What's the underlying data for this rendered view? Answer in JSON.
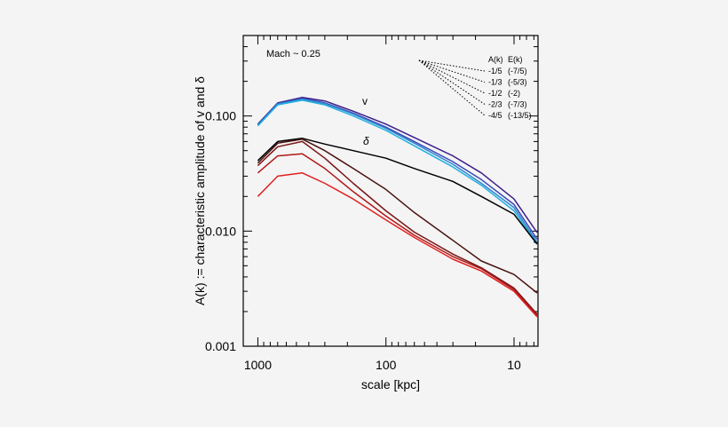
{
  "chart_data": {
    "type": "line",
    "title": "",
    "xlabel": "scale [kpc]",
    "ylabel": "A(k) := characteristic amplitude of v and δ",
    "xscale": "log",
    "yscale": "log",
    "x_reversed": true,
    "xlim": [
      1300,
      6.5
    ],
    "ylim": [
      0.001,
      0.5
    ],
    "xticks": [
      1000,
      100,
      10
    ],
    "xtick_labels": [
      "1000",
      "100",
      "10"
    ],
    "yticks": [
      0.001,
      0.01,
      0.1
    ],
    "ytick_labels": [
      "0.001",
      "0.010",
      "0.100"
    ],
    "annotations": {
      "mach": "Mach ~ 0.25",
      "v_label": "v",
      "delta_label": "δ"
    },
    "legend": {
      "placement": "top-right",
      "header_a": "A(k)",
      "header_e": "E(k)",
      "rows": [
        {
          "a": "-1/5",
          "e": "(-7/5)"
        },
        {
          "a": "-1/3",
          "e": "(-5/3)"
        },
        {
          "a": "-1/2",
          "e": "(-2)"
        },
        {
          "a": "-2/3",
          "e": "(-7/3)"
        },
        {
          "a": "-4/5",
          "e": "(-13/5)"
        }
      ]
    },
    "x": [
      1000,
      700,
      450,
      300,
      180,
      100,
      60,
      30,
      18,
      10,
      6.6
    ],
    "series": [
      {
        "group": "v",
        "color": "#3d1f8a",
        "values": [
          0.085,
          0.13,
          0.145,
          0.135,
          0.11,
          0.085,
          0.065,
          0.045,
          0.032,
          0.019,
          0.0097
        ]
      },
      {
        "group": "v",
        "color": "#3a49b8",
        "values": [
          0.084,
          0.129,
          0.142,
          0.13,
          0.106,
          0.08,
          0.06,
          0.04,
          0.028,
          0.017,
          0.0085
        ]
      },
      {
        "group": "v",
        "color": "#2f86d0",
        "values": [
          0.083,
          0.127,
          0.14,
          0.128,
          0.104,
          0.078,
          0.058,
          0.038,
          0.026,
          0.016,
          0.008
        ]
      },
      {
        "group": "v",
        "color": "#22b0e0",
        "values": [
          0.082,
          0.125,
          0.137,
          0.125,
          0.1,
          0.075,
          0.055,
          0.036,
          0.025,
          0.015,
          0.0077
        ]
      },
      {
        "group": "delta",
        "color": "#000000",
        "values": [
          0.041,
          0.06,
          0.064,
          0.057,
          0.05,
          0.043,
          0.035,
          0.027,
          0.02,
          0.014,
          0.0077
        ]
      },
      {
        "group": "delta",
        "color": "#4a1212",
        "values": [
          0.039,
          0.058,
          0.063,
          0.05,
          0.035,
          0.023,
          0.0145,
          0.0083,
          0.0055,
          0.0042,
          0.0029
        ]
      },
      {
        "group": "delta",
        "color": "#7a1616",
        "values": [
          0.037,
          0.054,
          0.06,
          0.043,
          0.026,
          0.015,
          0.0098,
          0.0063,
          0.0048,
          0.0032,
          0.0019
        ]
      },
      {
        "group": "delta",
        "color": "#b01818",
        "values": [
          0.032,
          0.045,
          0.047,
          0.035,
          0.022,
          0.0135,
          0.0092,
          0.006,
          0.0047,
          0.0031,
          0.00185
        ]
      },
      {
        "group": "delta",
        "color": "#e02020",
        "values": [
          0.02,
          0.03,
          0.032,
          0.026,
          0.019,
          0.0125,
          0.0088,
          0.0057,
          0.0045,
          0.003,
          0.0018
        ]
      }
    ]
  }
}
